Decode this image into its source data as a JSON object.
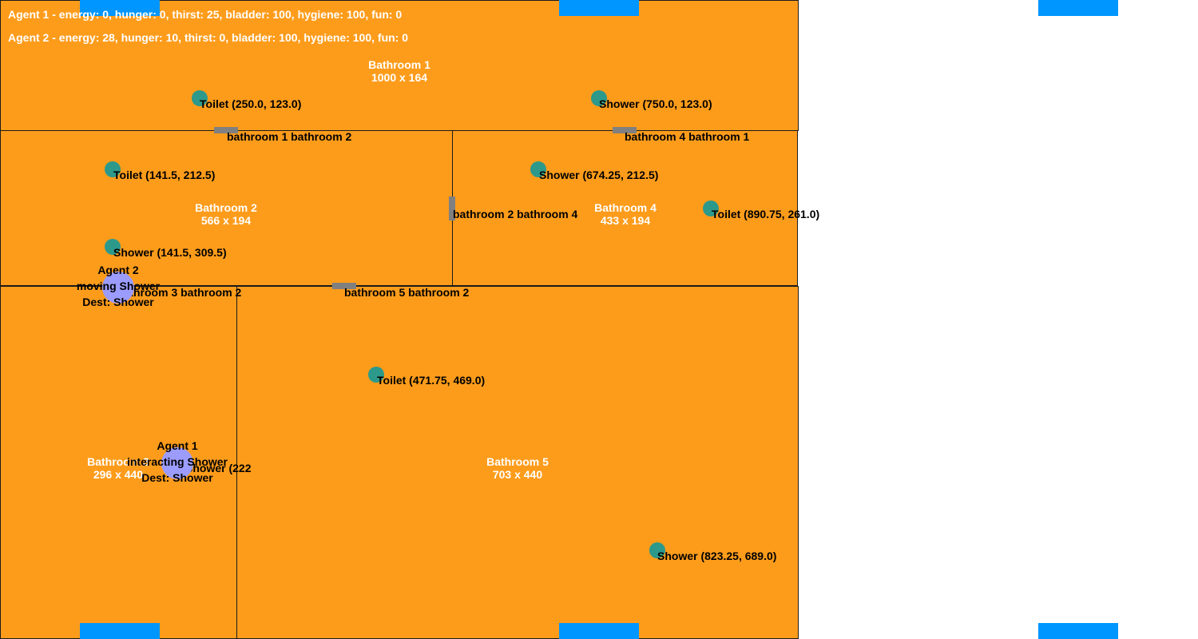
{
  "status": {
    "agent1": "Agent 1 - energy: 0, hunger: 0, thirst: 25, bladder: 100, hygiene: 100, fun: 0",
    "agent2": "Agent 2 - energy: 28, hunger: 10, thirst: 0, bladder: 100, hygiene: 100, fun: 0"
  },
  "rooms": {
    "r1": {
      "name": "Bathroom 1",
      "size": "1000 x 164"
    },
    "r2": {
      "name": "Bathroom 2",
      "size": "566 x 194"
    },
    "r4": {
      "name": "Bathroom 4",
      "size": "433 x 194"
    },
    "r3": {
      "name": "Bathroom 3",
      "size": "296 x 440"
    },
    "r5": {
      "name": "Bathroom 5",
      "size": "703 x 440"
    }
  },
  "objects": {
    "toilet1": "Toilet (250.0, 123.0)",
    "shower1": "Shower (750.0, 123.0)",
    "toilet2": "Toilet (141.5, 212.5)",
    "shower2": "Shower (141.5, 309.5)",
    "shower4": "Shower (674.25, 212.5)",
    "toilet4": "Toilet (890.75, 261.0)",
    "toilet5": "Toilet (471.75, 469.0)",
    "shower5": "Shower (823.25, 689.0)",
    "overlap3": "Shower (222"
  },
  "doors": {
    "d12": "bathroom 1 bathroom 2",
    "d41": "bathroom 4 bathroom 1",
    "d24": "bathroom 2 bathroom 4",
    "d32": "bathroom 3 bathroom 2",
    "d52": "bathroom 5 bathroom 2"
  },
  "agents": {
    "a1": {
      "name": "Agent 1",
      "state": "interacting Shower",
      "dest": "Dest: Shower"
    },
    "a2": {
      "name": "Agent 2",
      "state": "moving Shower",
      "dest": "Dest: Shower"
    }
  },
  "colors": {
    "floor": "#fd9c1b",
    "window": "#0096ff",
    "object": "#2c998b",
    "agent": "#9c9cff",
    "door": "#808080"
  }
}
